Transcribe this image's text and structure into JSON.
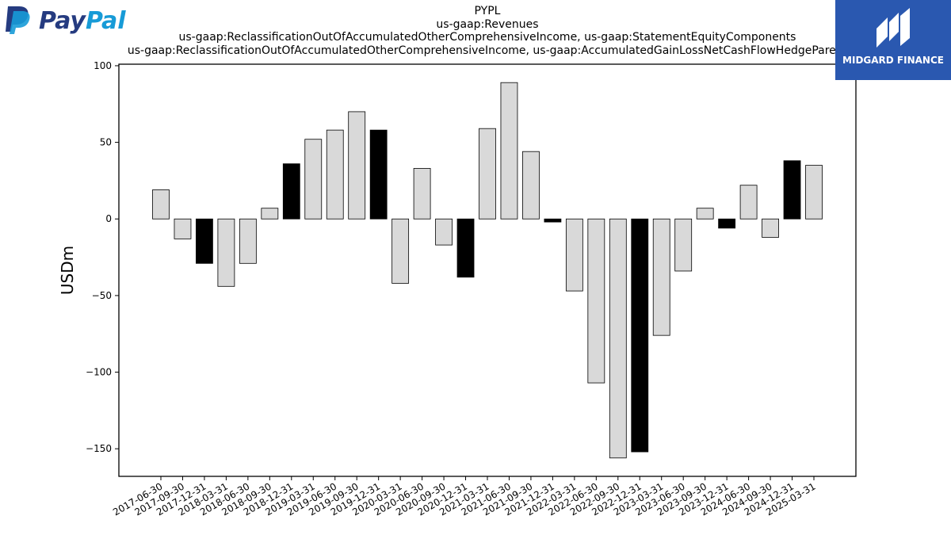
{
  "chart_data": {
    "type": "bar",
    "title": "PYPL",
    "subtitle_lines": [
      "us-gaap:Revenues",
      "us-gaap:ReclassificationOutOfAccumulatedOtherComprehensiveIncome, us-gaap:StatementEquityComponents",
      "us-gaap:ReclassificationOutOfAccumulatedOtherComprehensiveIncome, us-gaap:AccumulatedGainLossNetCashFlowHedgeParent"
    ],
    "xlabel": "",
    "ylabel": "USDm",
    "ylim": [
      -168,
      101
    ],
    "yticks": [
      100,
      50,
      0,
      -50,
      -100,
      -150
    ],
    "ytick_labels": [
      "100",
      "50",
      "0",
      "−50",
      "−100",
      "−150"
    ],
    "grid": false,
    "categories": [
      "2017-06-30",
      "2017-09-30",
      "2017-12-31",
      "2018-03-31",
      "2018-06-30",
      "2018-09-30",
      "2018-12-31",
      "2019-03-31",
      "2019-06-30",
      "2019-09-30",
      "2019-12-31",
      "2020-03-31",
      "2020-06-30",
      "2020-09-30",
      "2020-12-31",
      "2021-03-31",
      "2021-06-30",
      "2021-09-30",
      "2021-12-31",
      "2022-03-31",
      "2022-06-30",
      "2022-09-30",
      "2022-12-31",
      "2023-03-31",
      "2023-06-30",
      "2023-09-30",
      "2023-12-31",
      "2024-06-30",
      "2024-09-30",
      "2024-12-31",
      "2025-03-31"
    ],
    "values": [
      19,
      -13,
      -29,
      -44,
      -29,
      7,
      36,
      52,
      58,
      70,
      58,
      -42,
      33,
      -17,
      -38,
      59,
      89,
      44,
      -2,
      -47,
      -107,
      -156,
      -152,
      -76,
      -34,
      7,
      -6,
      22,
      -12,
      38,
      35
    ],
    "highlight": [
      false,
      false,
      true,
      false,
      false,
      false,
      true,
      false,
      false,
      false,
      true,
      false,
      false,
      false,
      true,
      false,
      false,
      false,
      true,
      false,
      false,
      false,
      true,
      false,
      false,
      false,
      true,
      false,
      false,
      true,
      false
    ],
    "colors": {
      "bar": "#d9d9d9",
      "highlight": "#000000",
      "edge": "#000000"
    }
  },
  "logos": {
    "paypal": {
      "text_pay": "Pay",
      "text_pal": "Pal",
      "color_dark": "#253b80",
      "color_light": "#179bd7"
    },
    "midgard": {
      "text": "MIDGARD FINANCE",
      "color": "#2a58b0"
    }
  }
}
